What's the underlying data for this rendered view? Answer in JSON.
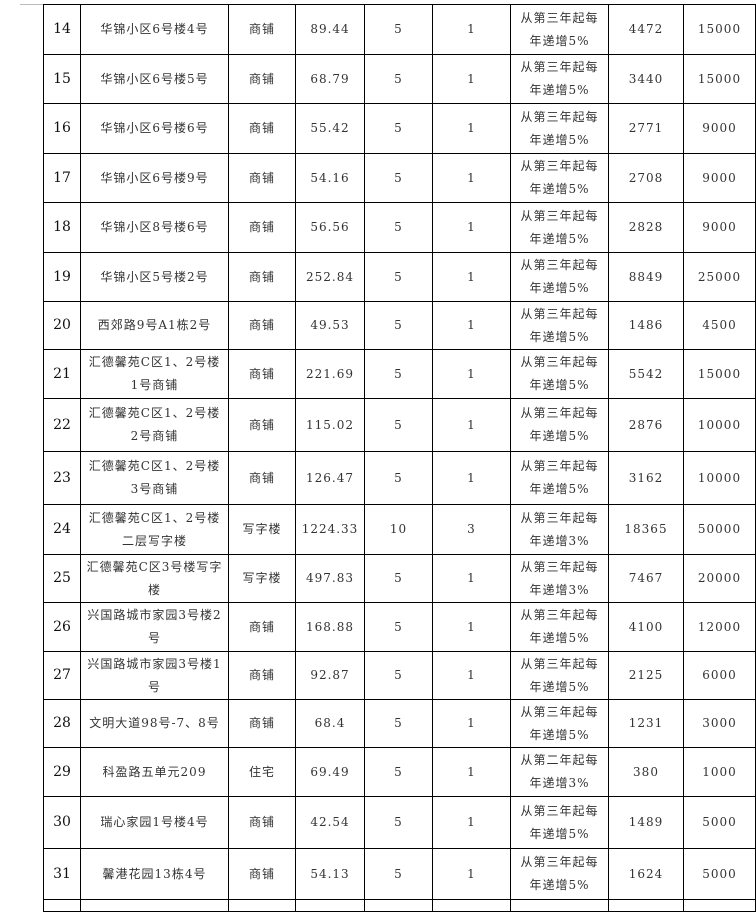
{
  "rows": [
    [
      "14",
      "华锦小区6号楼4号",
      "商铺",
      "89.44",
      "5",
      "1",
      "从第三年起每年递增5%",
      "4472",
      "15000"
    ],
    [
      "15",
      "华锦小区6号楼5号",
      "商铺",
      "68.79",
      "5",
      "1",
      "从第三年起每年递增5%",
      "3440",
      "15000"
    ],
    [
      "16",
      "华锦小区6号楼6号",
      "商铺",
      "55.42",
      "5",
      "1",
      "从第三年起每年递增5%",
      "2771",
      "9000"
    ],
    [
      "17",
      "华锦小区6号楼9号",
      "商铺",
      "54.16",
      "5",
      "1",
      "从第三年起每年递增5%",
      "2708",
      "9000"
    ],
    [
      "18",
      "华锦小区8号楼6号",
      "商铺",
      "56.56",
      "5",
      "1",
      "从第三年起每年递增5%",
      "2828",
      "9000"
    ],
    [
      "19",
      "华锦小区5号楼2号",
      "商铺",
      "252.84",
      "5",
      "1",
      "从第三年起每年递增5%",
      "8849",
      "25000"
    ],
    [
      "20",
      "西郊路9号A1栋2号",
      "商铺",
      "49.53",
      "5",
      "1",
      "从第三年起每年递增5%",
      "1486",
      "4500"
    ],
    [
      "21",
      "汇德馨苑C区1、2号楼1号商铺",
      "商铺",
      "221.69",
      "5",
      "1",
      "从第三年起每年递增5%",
      "5542",
      "15000"
    ],
    [
      "22",
      "汇德馨苑C区1、2号楼2号商铺",
      "商铺",
      "115.02",
      "5",
      "1",
      "从第三年起每年递增5%",
      "2876",
      "10000"
    ],
    [
      "23",
      "汇德馨苑C区1、2号楼3号商铺",
      "商铺",
      "126.47",
      "5",
      "1",
      "从第三年起每年递增5%",
      "3162",
      "10000"
    ],
    [
      "24",
      "汇德馨苑C区1、2号楼二层写字楼",
      "写字楼",
      "1224.33",
      "10",
      "3",
      "从第三年起每年递增3%",
      "18365",
      "50000"
    ],
    [
      "25",
      "汇德馨苑C区3号楼写字楼",
      "写字楼",
      "497.83",
      "5",
      "1",
      "从第三年起每年递增3%",
      "7467",
      "20000"
    ],
    [
      "26",
      "兴国路城市家园3号楼2号",
      "商铺",
      "168.88",
      "5",
      "1",
      "从第三年起每年递增5%",
      "4100",
      "12000"
    ],
    [
      "27",
      "兴国路城市家园3号楼1号",
      "商铺",
      "92.87",
      "5",
      "1",
      "从第三年起每年递增5%",
      "2125",
      "6000"
    ],
    [
      "28",
      "文明大道98号-7、8号",
      "商铺",
      "68.4",
      "5",
      "1",
      "从第三年起每年递增5%",
      "1231",
      "3000"
    ],
    [
      "29",
      "科盈路五单元209",
      "住宅",
      "69.49",
      "5",
      "1",
      "从第二年起每年递增3%",
      "380",
      "1000"
    ],
    [
      "30",
      "瑞心家园1号楼4号",
      "商铺",
      "42.54",
      "5",
      "1",
      "从第三年起每年递增5%",
      "1489",
      "5000"
    ],
    [
      "31",
      "馨港花园13栋4号",
      "商铺",
      "54.13",
      "5",
      "1",
      "从第三年起每年递增5%",
      "1624",
      "5000"
    ]
  ]
}
